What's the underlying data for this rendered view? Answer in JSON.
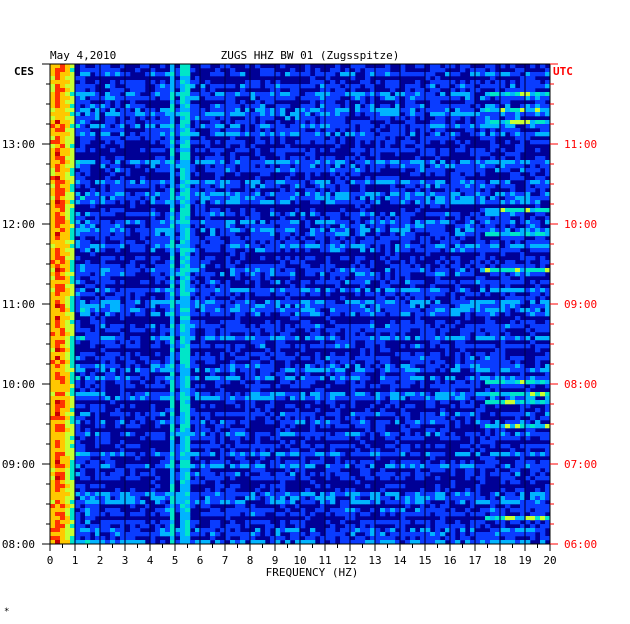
{
  "header": {
    "date": "May 4,2010",
    "station": "ZUGS HHZ BW 01 (Zugsspitze)"
  },
  "chart_data": {
    "type": "heatmap",
    "title": "ZUGS HHZ BW 01 (Zugsspitze)",
    "date": "May 4,2010",
    "xlabel": "FREQUENCY (HZ)",
    "x_ticks": [
      "0",
      "1",
      "2",
      "3",
      "4",
      "5",
      "6",
      "7",
      "8",
      "9",
      "10",
      "11",
      "12",
      "13",
      "14",
      "15",
      "16",
      "17",
      "18",
      "19",
      "20"
    ],
    "xlim": [
      0,
      20
    ],
    "left_axis_label": "CES",
    "left_ticks": [
      "13:00",
      "12:00",
      "11:00",
      "10:00",
      "09:00",
      "08:00"
    ],
    "right_axis_label": "UTC",
    "right_ticks": [
      "11:00",
      "10:00",
      "09:00",
      "08:00",
      "07:00",
      "06:00"
    ],
    "time_range_ces": [
      "08:00",
      "14:00"
    ],
    "colormap": [
      "#0000b4",
      "#0a3cff",
      "#00b4ff",
      "#00e6c8",
      "#c8ff32",
      "#ffc800",
      "#ff3200",
      "#c80000"
    ],
    "background_color": "#000096",
    "right_axis_color": "#ff0000",
    "features": [
      {
        "description": "strong low-frequency energy",
        "freq_range_hz": [
          0,
          1
        ]
      },
      {
        "description": "narrow line",
        "freq_hz": 4.9
      },
      {
        "description": "narrow line",
        "freq_hz": 5.4
      },
      {
        "description": "intermittent high-frequency bursts",
        "freq_range_hz": [
          17.5,
          20
        ]
      }
    ]
  },
  "footer": {
    "mark": "*"
  }
}
